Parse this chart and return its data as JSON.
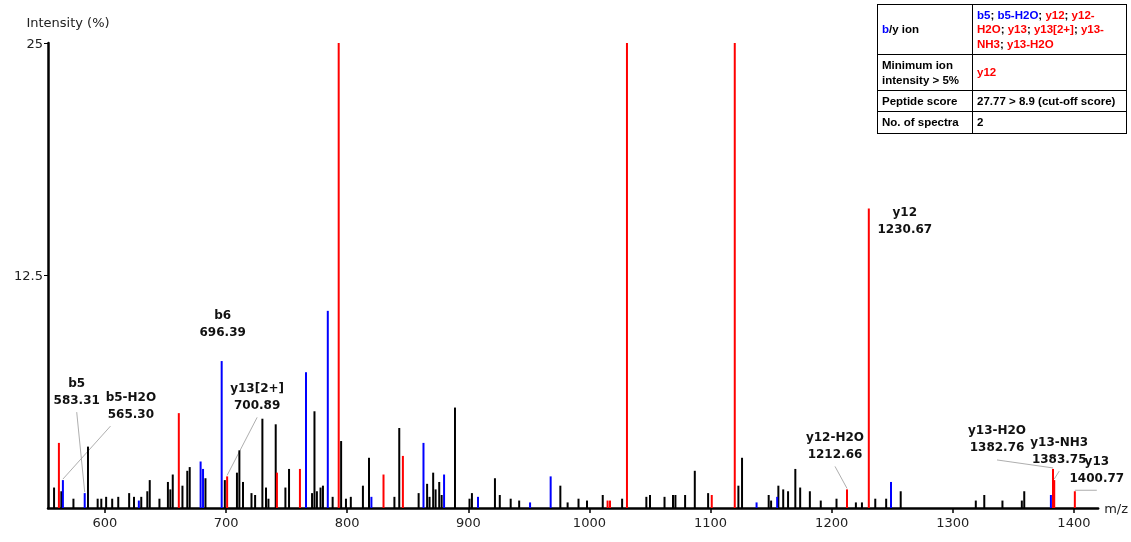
{
  "chart_data": {
    "type": "bar",
    "xlabel": "m/z",
    "ylabel": "Intensity (%)",
    "xlim": [
      553,
      1420
    ],
    "xticks": [
      600,
      700,
      800,
      900,
      1000,
      1100,
      1200,
      1300,
      1400
    ],
    "ylim": [
      0,
      25
    ],
    "yticks": [
      12.5,
      25
    ],
    "grid": false,
    "series": [
      {
        "color": "#000000",
        "x": [
          558,
          564,
          574,
          586,
          594,
          597,
          601,
          606,
          611,
          620,
          624,
          630,
          635,
          637,
          645,
          652,
          654,
          656,
          664,
          668,
          670,
          683,
          699,
          709,
          711,
          714,
          721,
          724,
          730,
          733,
          735,
          741,
          749,
          752,
          771,
          773,
          775,
          778,
          780,
          788,
          795,
          799,
          803,
          813,
          818,
          839,
          843,
          846,
          859,
          866,
          868,
          871,
          873,
          876,
          878,
          889,
          901,
          903,
          922,
          926,
          935,
          942,
          976,
          982,
          991,
          998,
          1011,
          1027,
          1047,
          1050,
          1062,
          1069,
          1071,
          1079,
          1087,
          1098,
          1123,
          1126,
          1148,
          1150,
          1156,
          1160,
          1164,
          1170,
          1174,
          1182,
          1191,
          1204,
          1220,
          1225,
          1236,
          1245,
          1257,
          1319,
          1326,
          1341,
          1357,
          1359
        ],
        "values": [
          1.1,
          0.9,
          0.5,
          3.3,
          0.5,
          0.5,
          0.6,
          0.5,
          0.6,
          0.8,
          0.6,
          0.6,
          0.9,
          1.5,
          0.5,
          1.4,
          1.0,
          1.8,
          1.2,
          2.0,
          2.2,
          1.6,
          1.5,
          1.9,
          3.1,
          1.4,
          0.8,
          0.7,
          4.8,
          1.1,
          0.5,
          4.5,
          1.1,
          2.1,
          0.8,
          5.2,
          0.9,
          1.1,
          1.2,
          0.6,
          3.6,
          0.5,
          0.6,
          1.2,
          2.7,
          0.6,
          4.3,
          null,
          0.8,
          1.3,
          0.6,
          1.9,
          1.0,
          1.4,
          0.7,
          5.4,
          0.5,
          0.8,
          1.6,
          0.7,
          0.5,
          0.4,
          1.2,
          0.3,
          0.5,
          0.4,
          0.7,
          0.5,
          0.6,
          0.7,
          0.6,
          0.7,
          0.7,
          0.7,
          2.0,
          0.8,
          1.2,
          2.7,
          0.7,
          0.4,
          1.2,
          1.0,
          0.9,
          2.1,
          1.1,
          0.9,
          0.4,
          0.5,
          0.3,
          0.3,
          0.5,
          0.5,
          0.9,
          0.4,
          0.7,
          0.4,
          0.4,
          0.9
        ]
      },
      {
        "color": "#0000ff",
        "x": [
          565.3,
          583.31,
          628,
          679,
          681,
          696.39,
          766,
          784,
          820,
          863,
          880,
          908,
          951,
          968,
          1138,
          1155,
          1249,
          1381
        ],
        "values": [
          1.5,
          0.8,
          0.4,
          2.5,
          2.1,
          7.9,
          7.3,
          10.6,
          0.6,
          3.5,
          1.8,
          0.6,
          0.3,
          1.7,
          0.3,
          0.6,
          1.4,
          0.7
        ]
      },
      {
        "color": "#ff0000",
        "x": [
          562,
          661,
          700.89,
          742,
          761,
          793,
          830,
          846,
          1015,
          1017,
          1031,
          1101,
          1120,
          1212.66,
          1230.67,
          1382.76,
          1383.75,
          1400.77
        ],
        "values": [
          3.5,
          5.1,
          1.7,
          1.9,
          2.1,
          25,
          1.8,
          2.8,
          0.4,
          0.4,
          25,
          0.7,
          25,
          1.0,
          16.1,
          2.1,
          1.5,
          0.9
        ]
      }
    ],
    "annotations": [
      {
        "text": "b5\n583.31",
        "x": 583.31,
        "y": 0.8
      },
      {
        "text": "b5-H2O\n565.30",
        "x": 565.3,
        "y": 1.5
      },
      {
        "text": "b6\n696.39",
        "x": 696.39,
        "y": 7.9
      },
      {
        "text": "y13[2+]\n700.89",
        "x": 700.89,
        "y": 1.7
      },
      {
        "text": "y12\n1230.67",
        "x": 1230.67,
        "y": 16.1
      },
      {
        "text": "y12-H2O\n1212.66",
        "x": 1212.66,
        "y": 1.0
      },
      {
        "text": "y13-H2O\n1382.76",
        "x": 1382.76,
        "y": 2.1
      },
      {
        "text": "y13-NH3\n1383.75",
        "x": 1383.75,
        "y": 1.5
      },
      {
        "text": "y13\n1400.77",
        "x": 1400.77,
        "y": 0.9
      },
      "b/y ion",
      "b5; b5-H2O; y12; y12-H2O; y13; y13[2+]; y13-NH3; y13-H2O",
      "Minimum ion intensity > 5%",
      "y12",
      "Peptide score",
      "27.77 > 8.9 (cut-off score)",
      "No. of spectra",
      "2"
    ]
  }
}
